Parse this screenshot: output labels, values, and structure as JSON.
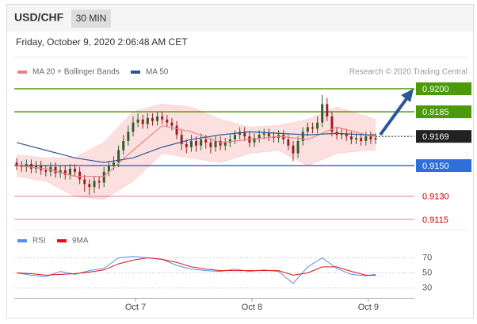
{
  "chart_data": {
    "type": "candlestick",
    "title": "USD/CHF",
    "timeframe": "30 MIN",
    "timestamp": "Friday, October 9, 2020 2:06:48 AM CET",
    "source": "Research © 2020 Trading Central",
    "xlim": [
      -0.5,
      82
    ],
    "xticks": [
      {
        "value": 24.5,
        "label": "Oct 7"
      },
      {
        "value": 48.5,
        "label": "Oct 8"
      },
      {
        "value": 72.5,
        "label": "Oct 9"
      }
    ],
    "ylim": [
      0.911,
      0.9206
    ],
    "up_color": "#2f5f2f",
    "down_color": "#9a2020",
    "ohlc": [
      [
        0.9152,
        0.9155,
        0.9147,
        0.915
      ],
      [
        0.915,
        0.9153,
        0.9146,
        0.9149
      ],
      [
        0.9149,
        0.9154,
        0.9146,
        0.9151
      ],
      [
        0.9151,
        0.9154,
        0.9145,
        0.9148
      ],
      [
        0.9148,
        0.9153,
        0.9145,
        0.915
      ],
      [
        0.915,
        0.9153,
        0.9144,
        0.9147
      ],
      [
        0.9147,
        0.915,
        0.9143,
        0.9146
      ],
      [
        0.9146,
        0.9152,
        0.9143,
        0.9149
      ],
      [
        0.9149,
        0.9152,
        0.9142,
        0.9145
      ],
      [
        0.9145,
        0.915,
        0.9142,
        0.9147
      ],
      [
        0.9147,
        0.915,
        0.9141,
        0.9144
      ],
      [
        0.9144,
        0.9151,
        0.9141,
        0.9148
      ],
      [
        0.9148,
        0.9151,
        0.9143,
        0.9146
      ],
      [
        0.9146,
        0.9149,
        0.9138,
        0.9141
      ],
      [
        0.9141,
        0.9144,
        0.9133,
        0.9138
      ],
      [
        0.9138,
        0.9141,
        0.9131,
        0.9136
      ],
      [
        0.9136,
        0.9143,
        0.9132,
        0.914
      ],
      [
        0.914,
        0.9143,
        0.9135,
        0.9139
      ],
      [
        0.9139,
        0.9149,
        0.9136,
        0.9146
      ],
      [
        0.9146,
        0.9153,
        0.9143,
        0.915
      ],
      [
        0.915,
        0.9156,
        0.9147,
        0.9152
      ],
      [
        0.9152,
        0.9163,
        0.9149,
        0.916
      ],
      [
        0.916,
        0.917,
        0.9157,
        0.9166
      ],
      [
        0.9166,
        0.9176,
        0.9163,
        0.9172
      ],
      [
        0.9172,
        0.9182,
        0.9169,
        0.9178
      ],
      [
        0.9178,
        0.9184,
        0.9175,
        0.918
      ],
      [
        0.918,
        0.9183,
        0.9174,
        0.9177
      ],
      [
        0.9177,
        0.9184,
        0.9174,
        0.9181
      ],
      [
        0.9181,
        0.9184,
        0.9176,
        0.9179
      ],
      [
        0.9179,
        0.9185,
        0.9176,
        0.9182
      ],
      [
        0.9182,
        0.9185,
        0.9177,
        0.918
      ],
      [
        0.918,
        0.9183,
        0.9175,
        0.9178
      ],
      [
        0.9178,
        0.9181,
        0.9173,
        0.9176
      ],
      [
        0.9176,
        0.9179,
        0.9167,
        0.917
      ],
      [
        0.917,
        0.9173,
        0.916,
        0.9164
      ],
      [
        0.9164,
        0.9167,
        0.9158,
        0.9162
      ],
      [
        0.9162,
        0.917,
        0.9159,
        0.9166
      ],
      [
        0.9166,
        0.9169,
        0.9159,
        0.9163
      ],
      [
        0.9163,
        0.9171,
        0.916,
        0.9167
      ],
      [
        0.9167,
        0.917,
        0.9161,
        0.9165
      ],
      [
        0.9165,
        0.9168,
        0.9158,
        0.9162
      ],
      [
        0.9162,
        0.9169,
        0.9159,
        0.9166
      ],
      [
        0.9166,
        0.9169,
        0.916,
        0.9163
      ],
      [
        0.9163,
        0.9168,
        0.916,
        0.9165
      ],
      [
        0.9165,
        0.917,
        0.9162,
        0.9167
      ],
      [
        0.9167,
        0.9173,
        0.9164,
        0.917
      ],
      [
        0.917,
        0.9175,
        0.9167,
        0.9172
      ],
      [
        0.9172,
        0.9175,
        0.9166,
        0.9169
      ],
      [
        0.9169,
        0.9172,
        0.9162,
        0.9165
      ],
      [
        0.9165,
        0.9171,
        0.9162,
        0.9168
      ],
      [
        0.9168,
        0.9173,
        0.9165,
        0.917
      ],
      [
        0.917,
        0.9174,
        0.9167,
        0.9171
      ],
      [
        0.9171,
        0.9174,
        0.9166,
        0.9169
      ],
      [
        0.9169,
        0.9172,
        0.9165,
        0.9168
      ],
      [
        0.9168,
        0.9173,
        0.9165,
        0.917
      ],
      [
        0.917,
        0.9173,
        0.9164,
        0.9167
      ],
      [
        0.9167,
        0.917,
        0.916,
        0.9163
      ],
      [
        0.9163,
        0.9166,
        0.9153,
        0.9158
      ],
      [
        0.9158,
        0.9169,
        0.9155,
        0.9166
      ],
      [
        0.9166,
        0.9175,
        0.9163,
        0.9172
      ],
      [
        0.9172,
        0.9178,
        0.9169,
        0.9175
      ],
      [
        0.9175,
        0.9178,
        0.9171,
        0.9174
      ],
      [
        0.9174,
        0.9182,
        0.9171,
        0.9178
      ],
      [
        0.9178,
        0.9196,
        0.9175,
        0.919
      ],
      [
        0.919,
        0.9194,
        0.9179,
        0.9182
      ],
      [
        0.9182,
        0.9185,
        0.9169,
        0.9172
      ],
      [
        0.9172,
        0.9175,
        0.9167,
        0.917
      ],
      [
        0.917,
        0.9174,
        0.9167,
        0.9171
      ],
      [
        0.9171,
        0.9174,
        0.9166,
        0.9169
      ],
      [
        0.9169,
        0.9172,
        0.9164,
        0.9167
      ],
      [
        0.9167,
        0.9171,
        0.9164,
        0.9168
      ],
      [
        0.9168,
        0.9171,
        0.9163,
        0.9166
      ],
      [
        0.9166,
        0.9172,
        0.9163,
        0.9169
      ],
      [
        0.9169,
        0.9172,
        0.9164,
        0.9167
      ],
      [
        0.9167,
        0.9171,
        0.9164,
        0.9168
      ]
    ],
    "overlays": [
      {
        "name": "MA 20 + Bollinger Bands",
        "color": "#f08080",
        "band_color": "#fbd3d3",
        "x": [
          0,
          6,
          12,
          18,
          24,
          30,
          36,
          42,
          48,
          54,
          60,
          66,
          72,
          74
        ],
        "values": [
          0.915,
          0.9148,
          0.9143,
          0.9143,
          0.916,
          0.9176,
          0.9172,
          0.9165,
          0.9167,
          0.9169,
          0.9167,
          0.9175,
          0.917,
          0.9169
        ],
        "upper": [
          0.9157,
          0.9155,
          0.9155,
          0.9165,
          0.9185,
          0.919,
          0.9188,
          0.918,
          0.9175,
          0.9176,
          0.918,
          0.9188,
          0.9182,
          0.918
        ],
        "lower": [
          0.9143,
          0.914,
          0.913,
          0.9128,
          0.914,
          0.9158,
          0.9155,
          0.9152,
          0.9158,
          0.916,
          0.915,
          0.9158,
          0.916,
          0.916
        ]
      },
      {
        "name": "MA 50",
        "color": "#2b5797",
        "x": [
          0,
          6,
          12,
          18,
          24,
          30,
          36,
          42,
          48,
          54,
          60,
          66,
          72,
          74
        ],
        "values": [
          0.9165,
          0.916,
          0.9155,
          0.9152,
          0.9155,
          0.9162,
          0.9167,
          0.917,
          0.9172,
          0.9171,
          0.917,
          0.9171,
          0.917,
          0.917
        ]
      }
    ],
    "levels": [
      {
        "value": 0.92,
        "label": "0.9200",
        "color": "#4a9a0a",
        "boxed": true,
        "dashed": false
      },
      {
        "value": 0.9185,
        "label": "0.9185",
        "color": "#4a9a0a",
        "boxed": true,
        "dashed": false
      },
      {
        "value": 0.9169,
        "label": "0.9169",
        "color": "#222222",
        "boxed": true,
        "dashed": true
      },
      {
        "value": 0.915,
        "label": "0.9150",
        "color": "#2e6fdc",
        "boxed": true,
        "dashed": false
      },
      {
        "value": 0.913,
        "label": "0.9130",
        "color": "#cc0000",
        "boxed": false,
        "dashed": false
      },
      {
        "value": 0.9115,
        "label": "0.9115",
        "color": "#cc0000",
        "boxed": false,
        "dashed": false
      }
    ],
    "rsi": {
      "ylim": [
        23,
        78
      ],
      "yticks": [
        70,
        50,
        30
      ],
      "x": [
        0,
        3,
        6,
        9,
        12,
        15,
        18,
        21,
        24,
        27,
        30,
        33,
        36,
        39,
        42,
        45,
        48,
        51,
        54,
        57,
        60,
        63,
        66,
        69,
        72,
        74
      ],
      "series": [
        {
          "name": "RSI",
          "color": "#5b8def",
          "values": [
            50,
            47,
            45,
            52,
            48,
            53,
            56,
            70,
            72,
            70,
            68,
            60,
            55,
            53,
            52,
            55,
            52,
            54,
            52,
            36,
            58,
            70,
            56,
            48,
            46,
            48
          ]
        },
        {
          "name": "9MA",
          "color": "#dd1111",
          "values": [
            50,
            49,
            47,
            48,
            49,
            51,
            54,
            62,
            67,
            70,
            68,
            64,
            58,
            55,
            53,
            53,
            53,
            53,
            53,
            47,
            50,
            58,
            58,
            52,
            47,
            47
          ]
        }
      ]
    }
  }
}
